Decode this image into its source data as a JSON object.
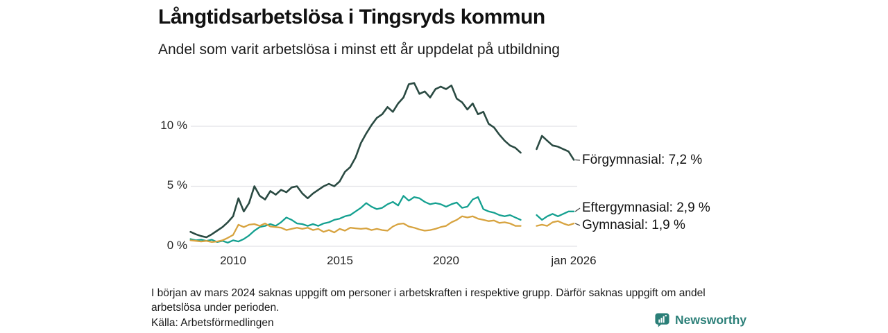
{
  "header": {
    "title": "Långtidsarbetslösa i Tingsryds kommun",
    "subtitle": "Andel som varit arbetslösa i minst ett år uppdelat på utbildning"
  },
  "chart_data": {
    "type": "line",
    "title": "Långtidsarbetslösa i Tingsryds kommun",
    "subtitle": "Andel som varit arbetslösa i minst ett år uppdelat på utbildning",
    "unit": "%",
    "x_start": 2008,
    "x_step": 0.25,
    "xlim": [
      2008,
      2026.1
    ],
    "ylim": [
      0,
      14.5
    ],
    "grid": true,
    "grid_color": "#e2e2e7",
    "legend_position": "end-of-line-labels",
    "x_ticks": [
      {
        "t": 2010,
        "label": "2010"
      },
      {
        "t": 2015,
        "label": "2015"
      },
      {
        "t": 2020,
        "label": "2020"
      },
      {
        "t": 2026,
        "label": "jan 2026"
      }
    ],
    "y_ticks": [
      {
        "v": 0,
        "label": "0 %"
      },
      {
        "v": 5,
        "label": "5 %"
      },
      {
        "v": 10,
        "label": "10 %"
      }
    ],
    "gap_note": "Data saknas i början av mars 2024 (avbrott i linjerna)",
    "series": [
      {
        "name": "Förgymnasial",
        "end_label": "Förgymnasial: 7,2 %",
        "latest_value": "7,2 %",
        "color": "#2a4a42",
        "values": [
          1.2,
          1.0,
          0.85,
          0.75,
          1.0,
          1.3,
          1.6,
          2.0,
          2.5,
          4.0,
          2.9,
          3.6,
          5.0,
          4.2,
          3.9,
          4.6,
          4.3,
          4.7,
          4.5,
          4.9,
          5.0,
          4.4,
          4.0,
          4.4,
          4.7,
          5.0,
          5.2,
          5.0,
          5.4,
          6.2,
          6.6,
          7.4,
          8.6,
          9.4,
          10.1,
          10.7,
          11.0,
          11.6,
          11.2,
          11.9,
          12.4,
          13.5,
          13.6,
          12.7,
          12.9,
          12.4,
          13.1,
          13.3,
          13.1,
          13.4,
          12.3,
          12.0,
          11.4,
          11.9,
          11.0,
          11.2,
          10.2,
          9.9,
          9.3,
          8.8,
          8.4,
          8.2,
          7.8,
          null,
          null,
          8.1,
          9.2,
          8.8,
          8.4,
          8.3,
          8.1,
          7.9,
          7.2
        ]
      },
      {
        "name": "Eftergymnasial",
        "end_label": "Eftergymnasial: 2,9 %",
        "latest_value": "2,9 %",
        "color": "#14a090",
        "values": [
          0.6,
          0.5,
          0.55,
          0.45,
          0.55,
          0.35,
          0.45,
          0.3,
          0.5,
          0.4,
          0.6,
          0.9,
          1.3,
          1.6,
          1.7,
          1.85,
          1.7,
          2.0,
          2.4,
          2.2,
          1.9,
          1.85,
          1.7,
          1.85,
          1.7,
          1.9,
          2.0,
          2.2,
          2.3,
          2.5,
          2.6,
          2.9,
          3.2,
          3.6,
          3.3,
          3.1,
          3.2,
          3.5,
          3.7,
          3.4,
          4.2,
          3.8,
          4.1,
          4.0,
          3.7,
          3.5,
          3.6,
          3.5,
          3.3,
          3.5,
          3.65,
          3.2,
          3.3,
          3.9,
          4.1,
          3.1,
          2.9,
          2.8,
          2.6,
          2.5,
          2.6,
          2.4,
          2.2,
          null,
          null,
          2.6,
          2.2,
          2.5,
          2.7,
          2.5,
          2.7,
          2.9,
          2.9
        ]
      },
      {
        "name": "Gymnasial",
        "end_label": "Gymnasial: 1,9 %",
        "latest_value": "1,9 %",
        "color": "#d7a33f",
        "values": [
          0.5,
          0.45,
          0.4,
          0.45,
          0.35,
          0.4,
          0.5,
          0.7,
          0.95,
          1.8,
          1.6,
          1.8,
          1.85,
          1.7,
          1.9,
          1.65,
          1.6,
          1.55,
          1.35,
          1.45,
          1.55,
          1.45,
          1.55,
          1.35,
          1.45,
          1.2,
          1.35,
          1.15,
          1.45,
          1.3,
          1.55,
          1.5,
          1.45,
          1.5,
          1.35,
          1.45,
          1.35,
          1.3,
          1.65,
          1.85,
          1.9,
          1.65,
          1.55,
          1.4,
          1.3,
          1.35,
          1.45,
          1.6,
          1.7,
          2.0,
          2.2,
          2.5,
          2.4,
          2.5,
          2.3,
          2.2,
          2.1,
          2.15,
          1.95,
          2.0,
          1.9,
          1.7,
          1.7,
          null,
          null,
          1.7,
          1.8,
          1.7,
          2.0,
          2.1,
          1.9,
          1.75,
          1.9
        ]
      }
    ]
  },
  "footer": {
    "note": "I början av mars 2024 saknas uppgift om personer i arbetskraften i respektive grupp. Därför saknas uppgift om andel arbetslösa under perioden.",
    "source": "Källa: Arbetsförmedlingen",
    "logo_text": "Newsworthy",
    "logo_color": "#2b7f78"
  }
}
